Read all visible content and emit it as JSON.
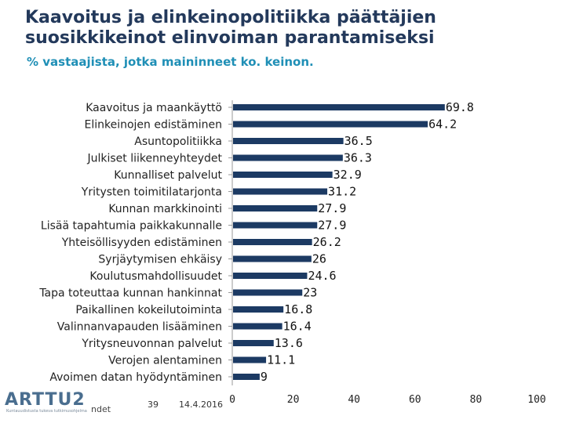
{
  "title": "Kaavoitus ja elinkeinopolitiikka päättäjien suosikkikeinot elinvoiman parantamiseksi",
  "subtitle": "% vastaajista, jotka maininneet ko. keinon.",
  "footer": {
    "page": "39",
    "date": "14.4.2016"
  },
  "logo": {
    "text": "ARTTU2",
    "tagline": "Kuntauudistusta tukeva tutkimusohjelma",
    "tail": "ndet"
  },
  "colors": {
    "bar": "#1c3a63",
    "title": "#23395b",
    "subtitle": "#1f8fb6"
  },
  "chart_data": {
    "type": "bar",
    "orientation": "horizontal",
    "categories": [
      "Kaavoitus ja maankäyttö",
      "Elinkeinojen edistäminen",
      "Asuntopolitiikka",
      "Julkiset liikenneyhteydet",
      "Kunnalliset palvelut",
      "Yritysten toimitilatarjonta",
      "Kunnan markkinointi",
      "Lisää tapahtumia paikkakunnalle",
      "Yhteisöllisyyden edistäminen",
      "Syrjäytymisen ehkäisy",
      "Koulutusmahdollisuudet",
      "Tapa toteuttaa kunnan hankinnat",
      "Paikallinen kokeilutoiminta",
      "Valinnanvapauden lisääminen",
      "Yritysneuvonnan palvelut",
      "Verojen alentaminen",
      "Avoimen datan hyödyntäminen"
    ],
    "values": [
      69.8,
      64.2,
      36.5,
      36.3,
      32.9,
      31.2,
      27.9,
      27.9,
      26.2,
      26,
      24.6,
      23,
      16.8,
      16.4,
      13.6,
      11.1,
      9
    ],
    "value_labels": [
      "69.8",
      "64.2",
      "36.5",
      "36.3",
      "32.9",
      "31.2",
      "27.9",
      "27.9",
      "26.2",
      "26",
      "24.6",
      "23",
      "16.8",
      "16.4",
      "13.6",
      "11.1",
      "9"
    ],
    "xlim": [
      0,
      100
    ],
    "xticks": [
      "0",
      "20",
      "40",
      "60",
      "80",
      "100"
    ],
    "grid": false,
    "legend": "none"
  }
}
